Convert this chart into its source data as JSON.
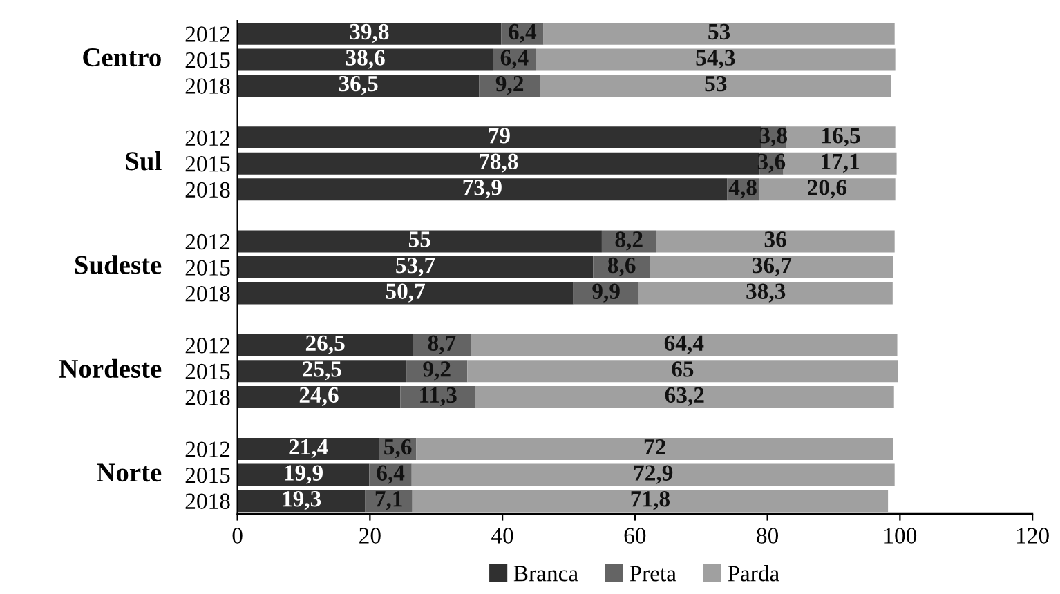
{
  "chart_data": {
    "type": "bar",
    "orientation": "horizontal",
    "stacked": true,
    "categories": [
      "2012",
      "2015",
      "2018",
      null,
      "2012",
      "2015",
      "2018",
      null,
      "2012",
      "2015",
      "2018",
      null,
      "2012",
      "2015",
      "2018",
      null,
      "2012",
      "2015",
      "2018"
    ],
    "annotations": [
      "Centro",
      "Sul",
      "Sudeste",
      "Nordeste",
      "Norte"
    ],
    "series": [
      {
        "name": "Branca",
        "color": "#303030",
        "values": [
          39.8,
          38.6,
          36.5,
          null,
          79,
          78.8,
          73.9,
          null,
          55,
          53.7,
          50.7,
          null,
          26.5,
          25.5,
          24.6,
          null,
          21.4,
          19.9,
          19.3
        ],
        "value_labels": [
          "39,8",
          "38,6",
          "36,5",
          null,
          "79",
          "78,8",
          "73,9",
          null,
          "55",
          "53,7",
          "50,7",
          null,
          "26,5",
          "25,5",
          "24,6",
          null,
          "21,4",
          "19,9",
          "19,3"
        ]
      },
      {
        "name": "Preta",
        "color": "#646464",
        "values": [
          6.4,
          6.4,
          9.2,
          null,
          3.8,
          3.6,
          4.8,
          null,
          8.2,
          8.6,
          9.9,
          null,
          8.7,
          9.2,
          11.3,
          null,
          5.6,
          6.4,
          7.1
        ],
        "value_labels": [
          "6,4",
          "6,4",
          "9,2",
          null,
          "3,8",
          "3,6",
          "4,8",
          null,
          "8,2",
          "8,6",
          "9,9",
          null,
          "8,7",
          "9,2",
          "11,3",
          null,
          "5,6",
          "6,4",
          "7,1"
        ]
      },
      {
        "name": "Parda",
        "color": "#a0a0a0",
        "values": [
          53,
          54.3,
          53,
          null,
          16.5,
          17.1,
          20.6,
          null,
          36,
          36.7,
          38.3,
          null,
          64.4,
          65,
          63.2,
          null,
          72,
          72.9,
          71.8
        ],
        "value_labels": [
          "53",
          "54,3",
          "53",
          null,
          "16,5",
          "17,1",
          "20,6",
          null,
          "36",
          "36,7",
          "38,3",
          null,
          "64,4",
          "65",
          "63,2",
          null,
          "72",
          "72,9",
          "71,8"
        ]
      }
    ],
    "xlim": [
      0,
      120
    ],
    "xticks": [
      0,
      20,
      40,
      60,
      80,
      100,
      120
    ],
    "grid": false,
    "legend": "bottom"
  }
}
